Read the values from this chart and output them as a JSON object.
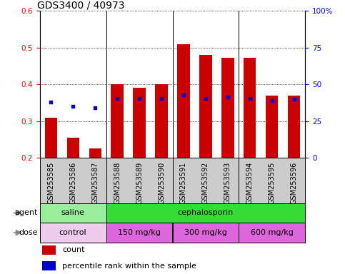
{
  "title": "GDS3400 / 40973",
  "samples": [
    "GSM253585",
    "GSM253586",
    "GSM253587",
    "GSM253588",
    "GSM253589",
    "GSM253590",
    "GSM253591",
    "GSM253592",
    "GSM253593",
    "GSM253594",
    "GSM253595",
    "GSM253596"
  ],
  "bar_values": [
    0.31,
    0.255,
    0.225,
    0.4,
    0.39,
    0.4,
    0.51,
    0.48,
    0.472,
    0.472,
    0.37,
    0.37
  ],
  "bar_bottom": 0.2,
  "dot_values": [
    0.352,
    0.34,
    0.337,
    0.362,
    0.362,
    0.362,
    0.372,
    0.362,
    0.365,
    0.362,
    0.355,
    0.36
  ],
  "bar_color": "#cc0000",
  "dot_color": "#0000cc",
  "ylim": [
    0.2,
    0.6
  ],
  "yticks_left": [
    0.2,
    0.3,
    0.4,
    0.5,
    0.6
  ],
  "ytick_left_labels": [
    "0.2",
    "0.3",
    "0.4",
    "0.5",
    "0.6"
  ],
  "yticks_right_pct": [
    0,
    25,
    50,
    75,
    100
  ],
  "ytick_right_labels": [
    "0",
    "25",
    "50",
    "75",
    "100%"
  ],
  "agent_groups": [
    {
      "label": "saline",
      "start": 0,
      "end": 3,
      "color": "#99ee99"
    },
    {
      "label": "cephalosporin",
      "start": 3,
      "end": 12,
      "color": "#33dd33"
    }
  ],
  "dose_groups": [
    {
      "label": "control",
      "start": 0,
      "end": 3,
      "color": "#eeccee"
    },
    {
      "label": "150 mg/kg",
      "start": 3,
      "end": 6,
      "color": "#dd66dd"
    },
    {
      "label": "300 mg/kg",
      "start": 6,
      "end": 9,
      "color": "#dd66dd"
    },
    {
      "label": "600 mg/kg",
      "start": 9,
      "end": 12,
      "color": "#dd66dd"
    }
  ],
  "group_separators": [
    3,
    6,
    9
  ],
  "bar_color_red": "#cc0000",
  "dot_color_blue": "#0000cc",
  "background_color": "#ffffff",
  "sample_bg_color": "#cccccc",
  "bar_width": 0.55,
  "title_fontsize": 10,
  "tick_fontsize": 7.5,
  "label_fontsize": 8,
  "arrow_color": "#888888"
}
